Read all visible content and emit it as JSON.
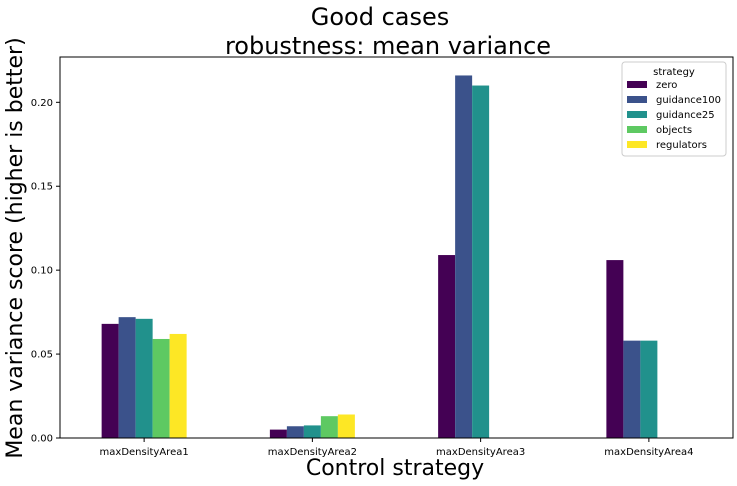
{
  "chart_data": {
    "type": "bar",
    "title_line1": "Good cases",
    "title_line2": "robustness: mean variance",
    "xlabel": "Control strategy",
    "ylabel": "Mean variance score (higher is better)",
    "categories": [
      "maxDensityArea1",
      "maxDensityArea2",
      "maxDensityArea3",
      "maxDensityArea4"
    ],
    "ylim": [
      0,
      0.227
    ],
    "yticks": [
      0.0,
      0.05,
      0.1,
      0.15,
      0.2
    ],
    "ytick_labels": [
      "0.00",
      "0.05",
      "0.10",
      "0.15",
      "0.20"
    ],
    "legend_title": "strategy",
    "legend_position": "top-right",
    "grid": false,
    "series": [
      {
        "name": "zero",
        "color": "#440154",
        "values": [
          0.068,
          0.005,
          0.109,
          0.106
        ]
      },
      {
        "name": "guidance100",
        "color": "#3b528b",
        "values": [
          0.072,
          0.007,
          0.216,
          0.058
        ]
      },
      {
        "name": "guidance25",
        "color": "#21918c",
        "values": [
          0.071,
          0.0075,
          0.21,
          0.058
        ]
      },
      {
        "name": "objects",
        "color": "#5ec962",
        "values": [
          0.059,
          0.013,
          null,
          null
        ]
      },
      {
        "name": "regulators",
        "color": "#fde725",
        "values": [
          0.062,
          0.014,
          null,
          null
        ]
      }
    ]
  }
}
